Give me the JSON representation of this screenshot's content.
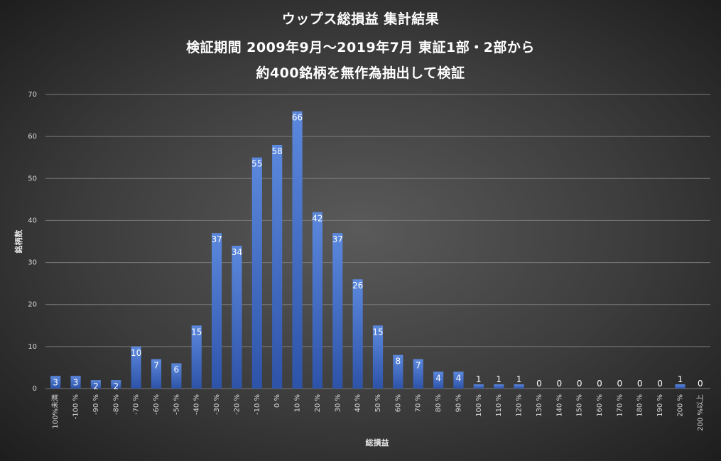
{
  "colors": {
    "bar_top": "#5b88dd",
    "bar_bottom": "#2d53a8",
    "grid": "#7a7a7a",
    "text": "#d9d9d9"
  },
  "chart_data": {
    "type": "bar",
    "title_lines": [
      "ウップス総損益 集計結果",
      "検証期間 2009年9月～2019年7月 東証1部・2部から",
      "約400銘柄を無作為抽出して検証"
    ],
    "xlabel": "総損益",
    "ylabel": "銘柄数",
    "ylim": [
      0,
      70
    ],
    "yticks": [
      0,
      10,
      20,
      30,
      40,
      50,
      60,
      70
    ],
    "grid": true,
    "legend": "none",
    "categories": [
      "100%未満",
      "-100 %",
      "-90 %",
      "-80 %",
      "-70 %",
      "-60 %",
      "-50 %",
      "-40 %",
      "-30 %",
      "-20 %",
      "-10 %",
      "0 %",
      "10 %",
      "20 %",
      "30 %",
      "40 %",
      "50 %",
      "60 %",
      "70 %",
      "80 %",
      "90 %",
      "100 %",
      "110 %",
      "120 %",
      "130 %",
      "140 %",
      "150 %",
      "160 %",
      "170 %",
      "180 %",
      "190 %",
      "200 %",
      "200 %以上"
    ],
    "values": [
      3,
      3,
      2,
      2,
      10,
      7,
      6,
      15,
      37,
      34,
      55,
      58,
      66,
      42,
      37,
      26,
      15,
      8,
      7,
      4,
      4,
      1,
      1,
      1,
      0,
      0,
      0,
      0,
      0,
      0,
      0,
      1,
      0
    ]
  }
}
